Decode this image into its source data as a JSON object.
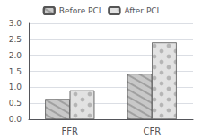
{
  "chart_data": {
    "type": "bar",
    "categories": [
      "FFR",
      "CFR"
    ],
    "series": [
      {
        "name": "Before PCI",
        "color": "#c8c8c8",
        "values": [
          0.63,
          1.42
        ]
      },
      {
        "name": "After PCI",
        "color": "#e2e2e2",
        "values": [
          0.9,
          2.4
        ]
      }
    ],
    "ylim": [
      0,
      3
    ],
    "yticks": [
      {
        "value": 0,
        "label": "0.0"
      },
      0.5,
      {
        "value": 1,
        "label": "1.0"
      },
      1.5,
      {
        "value": 2,
        "label": "2.0"
      },
      2.5,
      {
        "value": 3,
        "label": "3.0"
      }
    ],
    "grid": true,
    "legend": "top"
  }
}
